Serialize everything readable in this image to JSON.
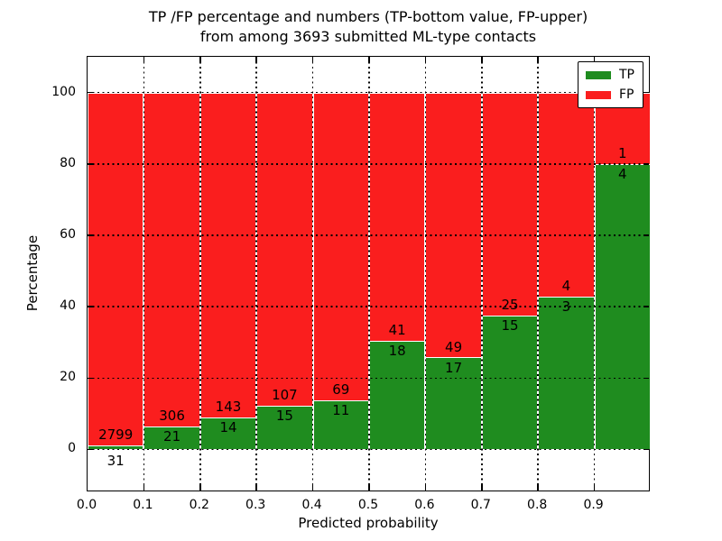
{
  "figure": {
    "title_line1": "TP /FP percentage and numbers (TP-bottom value, FP-upper)",
    "title_line2": "from among 3693 submitted ML-type contacts"
  },
  "chart_data": {
    "type": "bar",
    "stacked": true,
    "normalized_to_percent": true,
    "title": "TP /FP percentage and numbers (TP-bottom value, FP-upper)\nfrom among 3693 submitted ML-type contacts",
    "xlabel": "Predicted probability",
    "ylabel": "Percentage",
    "total_contacts": 3693,
    "categories": [
      "0.0-0.1",
      "0.1-0.2",
      "0.2-0.3",
      "0.3-0.4",
      "0.4-0.5",
      "0.5-0.6",
      "0.6-0.7",
      "0.7-0.8",
      "0.8-0.9",
      "0.9-1.0"
    ],
    "series": [
      {
        "name": "TP",
        "color": "#1f8c1f",
        "values": [
          31,
          21,
          14,
          15,
          11,
          18,
          17,
          15,
          3,
          4
        ]
      },
      {
        "name": "FP",
        "color": "#fa1e1e",
        "values": [
          2799,
          306,
          143,
          107,
          69,
          41,
          49,
          25,
          4,
          1
        ]
      }
    ],
    "tp_percent": [
      1.1,
      6.4,
      8.9,
      12.3,
      13.8,
      30.5,
      25.8,
      37.5,
      42.9,
      80.0
    ],
    "x_tick_labels": [
      "0.0",
      "0.1",
      "0.2",
      "0.3",
      "0.4",
      "0.5",
      "0.6",
      "0.7",
      "0.8",
      "0.9"
    ],
    "y_tick_values": [
      0,
      20,
      40,
      60,
      80,
      100
    ],
    "xlim": [
      0,
      1
    ],
    "ylim": [
      -12,
      110
    ],
    "grid": true,
    "grid_linestyle": "dotted",
    "legend": {
      "position": "upper right",
      "entries": [
        {
          "label": "TP",
          "color": "#1f8c1f"
        },
        {
          "label": "FP",
          "color": "#fa1e1e"
        }
      ]
    }
  }
}
